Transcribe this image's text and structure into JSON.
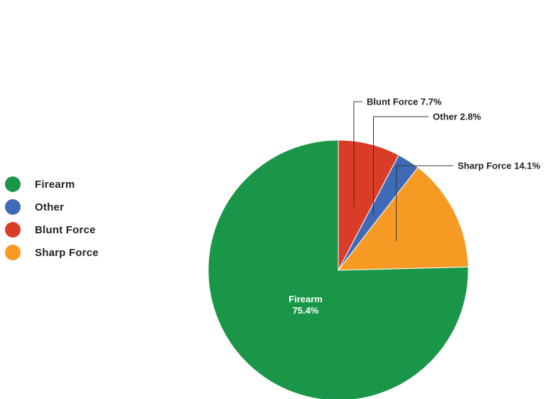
{
  "chart_data": {
    "type": "pie",
    "title": "",
    "legend_position": "left",
    "categories": [
      "Firearm",
      "Other",
      "Blunt Force",
      "Sharp Force"
    ],
    "values": [
      75.4,
      2.8,
      7.7,
      14.1
    ],
    "unit": "%",
    "colors": [
      "#1a9649",
      "#3f6ab8",
      "#d93d28",
      "#f79a24"
    ],
    "draw_order": [
      "Blunt Force",
      "Other",
      "Sharp Force",
      "Firearm"
    ],
    "slice_labels": {
      "Blunt Force": {
        "name": "Blunt Force",
        "value": "7.7%"
      },
      "Other": {
        "name": "Other",
        "value": "2.8%"
      },
      "Sharp Force": {
        "name": "Sharp Force",
        "value": "14.1%"
      },
      "Firearm": {
        "name": "Firearm",
        "value": "75.4%"
      }
    }
  }
}
